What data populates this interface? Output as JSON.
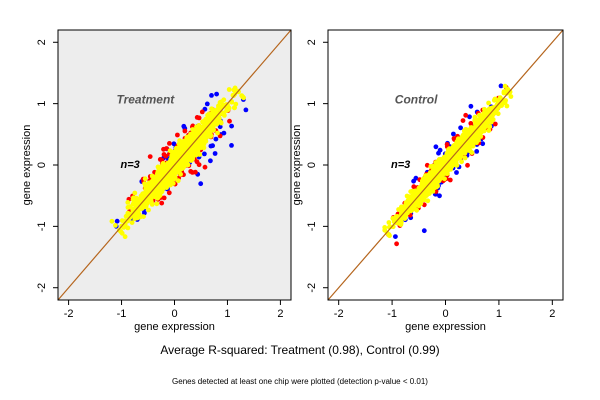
{
  "chart_data": [
    {
      "type": "scatter",
      "title": "Treatment",
      "xlabel": "gene expression",
      "ylabel": "gene expression",
      "n_label": "n=3",
      "xlim": [
        -2.2,
        2.2
      ],
      "ylim": [
        -2.2,
        2.2
      ],
      "xticks": [
        "-2",
        "-1",
        "0",
        "1",
        "2"
      ],
      "yticks": [
        "-2",
        "-1",
        "0",
        "1",
        "2"
      ],
      "grid": false,
      "reference_line": "y = x",
      "colors": {
        "background": "#ededed",
        "high_spread": "#0000ff",
        "mid_spread": "#ff0000",
        "main": "#ffff00",
        "reference": "#b5651d"
      },
      "cloud": {
        "center": [
          0.0,
          0.0
        ],
        "main_spread": 0.1,
        "outer_spread": 0.2,
        "range": [
          -1.05,
          1.2
        ]
      }
    },
    {
      "type": "scatter",
      "title": "Control",
      "xlabel": "gene expression",
      "ylabel": "gene expression",
      "n_label": "n=3",
      "xlim": [
        -2.2,
        2.2
      ],
      "ylim": [
        -2.2,
        2.2
      ],
      "xticks": [
        "-2",
        "-1",
        "0",
        "1",
        "2"
      ],
      "yticks": [
        "-2",
        "-1",
        "0",
        "1",
        "2"
      ],
      "grid": false,
      "reference_line": "y = x",
      "colors": {
        "background": "#ffffff",
        "high_spread": "#0000ff",
        "mid_spread": "#ff0000",
        "main": "#ffff00",
        "reference": "#b5651d"
      },
      "cloud": {
        "center": [
          0.0,
          0.0
        ],
        "main_spread": 0.08,
        "outer_spread": 0.16,
        "range": [
          -1.1,
          1.2
        ]
      }
    }
  ],
  "captions": {
    "main": "Average R-squared: Treatment (0.98), Control (0.99)",
    "sub": "Genes detected at least one chip were plotted (detection p-value < 0.01)"
  }
}
